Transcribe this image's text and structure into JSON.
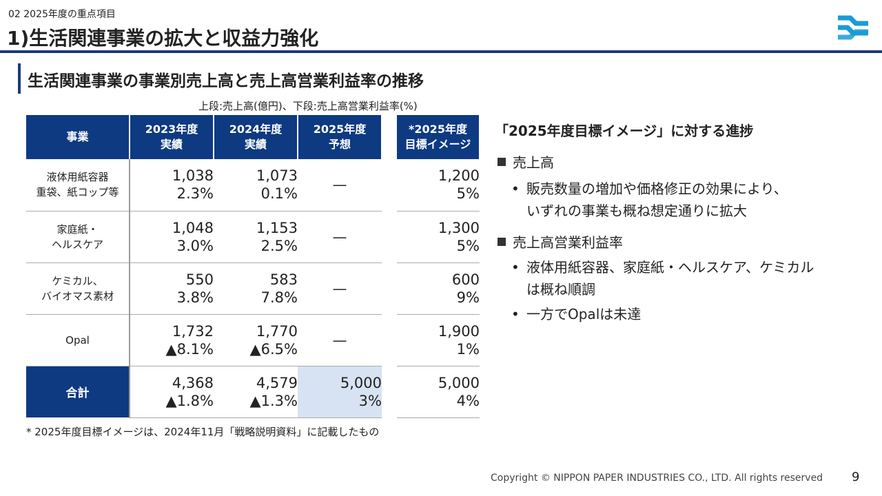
{
  "header": {
    "section_label": "02 2025年度の重点項目",
    "title": "1)生活関連事業の拡大と収益力強化"
  },
  "logo": {
    "icon": "nippon-paper-logo-icon",
    "color": "#1a9bd7"
  },
  "subtitle": "生活関連事業の事業別売上高と売上高営業利益率の推移",
  "unit_note": "上段:売上高(億円)、下段:売上高営業利益率(%)",
  "table": {
    "headers": {
      "business": "事業",
      "y2023": [
        "2023年度",
        "実績"
      ],
      "y2024": [
        "2024年度",
        "実績"
      ],
      "y2025": [
        "2025年度",
        "予想"
      ],
      "target": [
        "*2025年度",
        "目標イメージ"
      ]
    },
    "rows": [
      {
        "name": [
          "液体用紙容器",
          "重袋、紙コップ等"
        ],
        "y2023": [
          "1,038",
          "2.3%"
        ],
        "y2024": [
          "1,073",
          "0.1%"
        ],
        "y2025": "—",
        "target": [
          "1,200",
          "5%"
        ]
      },
      {
        "name": [
          "家庭紙・",
          "ヘルスケア"
        ],
        "y2023": [
          "1,048",
          "3.0%"
        ],
        "y2024": [
          "1,153",
          "2.5%"
        ],
        "y2025": "—",
        "target": [
          "1,300",
          "5%"
        ]
      },
      {
        "name": [
          "ケミカル、",
          "バイオマス素材"
        ],
        "y2023": [
          "550",
          "3.8%"
        ],
        "y2024": [
          "583",
          "7.8%"
        ],
        "y2025": "—",
        "target": [
          "600",
          "9%"
        ]
      },
      {
        "name": [
          "Opal",
          ""
        ],
        "y2023": [
          "1,732",
          "▲8.1%"
        ],
        "y2024": [
          "1,770",
          "▲6.5%"
        ],
        "y2025": "—",
        "target": [
          "1,900",
          "1%"
        ]
      }
    ],
    "total": {
      "name": "合計",
      "y2023": [
        "4,368",
        "▲1.8%"
      ],
      "y2024": [
        "4,579",
        "▲1.3%"
      ],
      "y2025": [
        "5,000",
        "3%"
      ],
      "target": [
        "5,000",
        "4%"
      ]
    }
  },
  "footnote": "* 2025年度目標イメージは、2024年11月「戦略説明資料」に記載したもの",
  "progress": {
    "title": "「2025年度目標イメージ」に対する進捗",
    "sections": [
      {
        "heading": "売上高",
        "bullets": [
          {
            "line1": "販売数量の増加や価格修正の効果により、",
            "line2": "いずれの事業も概ね想定通りに拡大"
          }
        ]
      },
      {
        "heading": "売上高営業利益率",
        "bullets": [
          {
            "line1": "液体用紙容器、家庭紙・ヘルスケア、ケミカル",
            "line2": "は概ね順調"
          },
          {
            "line1": "一方でOpalは未達",
            "line2": ""
          }
        ]
      }
    ]
  },
  "footer": {
    "copyright": "Copyright © NIPPON PAPER INDUSTRIES CO., LTD. All rights reserved",
    "page_number": "9"
  }
}
